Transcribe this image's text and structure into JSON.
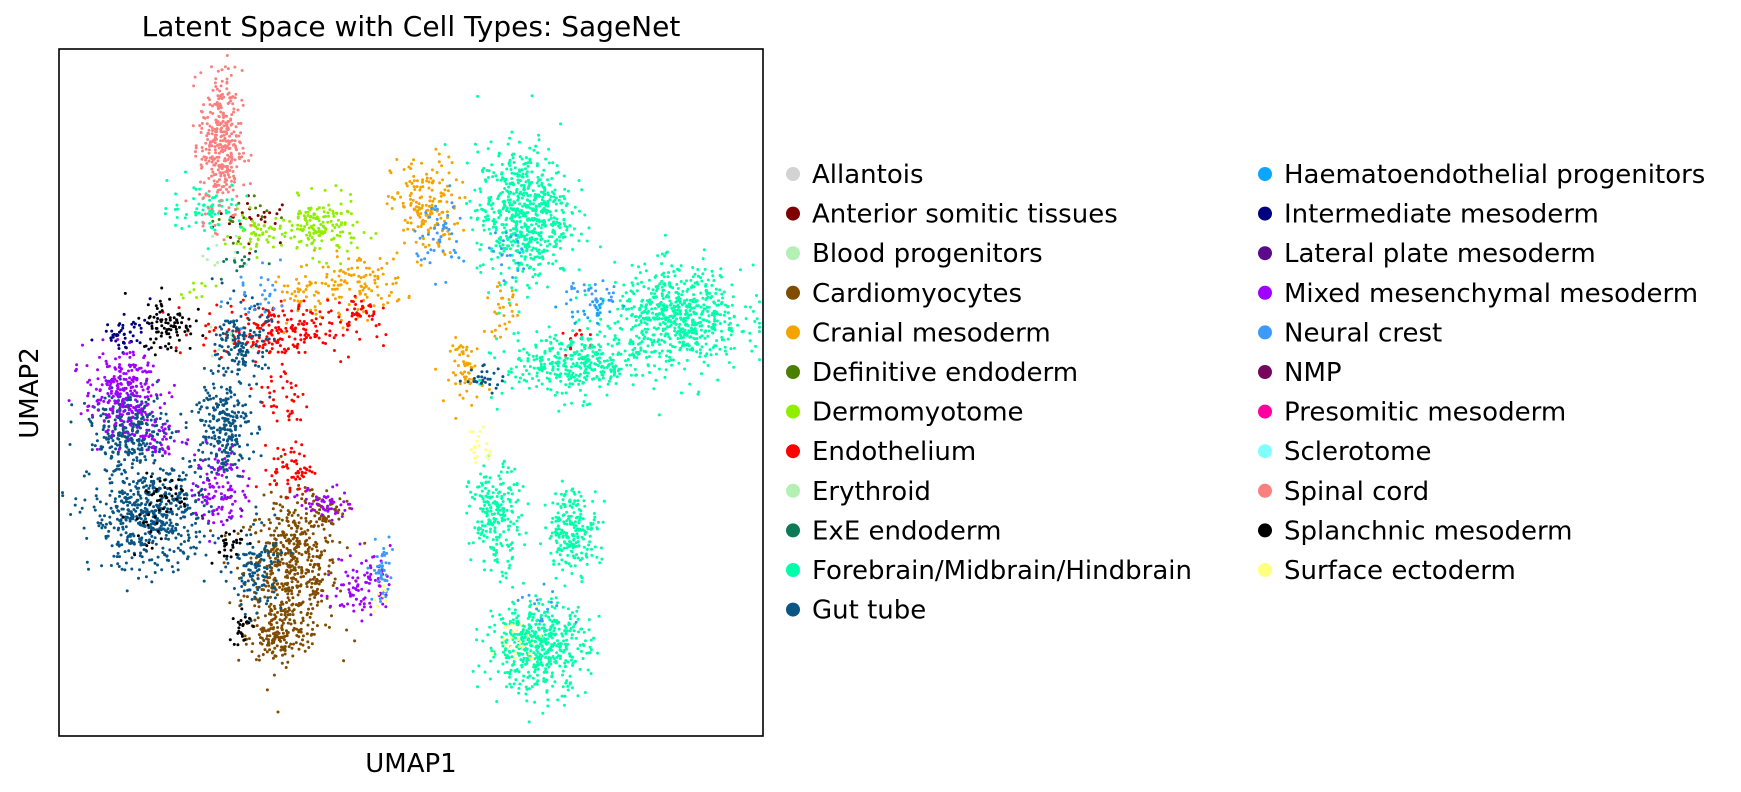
{
  "chart_data": {
    "type": "scatter",
    "title": "Latent Space with Cell Types: SageNet",
    "xlabel": "UMAP1",
    "ylabel": "UMAP2",
    "xlim": [
      0,
      10
    ],
    "ylim": [
      0,
      10
    ],
    "grid": false,
    "x_ticks": false,
    "y_ticks": false,
    "legend_position": "right",
    "legend_columns": 2,
    "series": [
      {
        "name": "Allantois",
        "color": "#d3d3d3",
        "regions": []
      },
      {
        "name": "Anterior somitic tissues",
        "color": "#800000",
        "regions": [
          [
            2.8,
            7.5,
            0.5,
            0.3,
            30
          ]
        ]
      },
      {
        "name": "Blood progenitors",
        "color": "#b4f0b4",
        "regions": [
          [
            2.4,
            7.0,
            0.3,
            0.3,
            10
          ]
        ]
      },
      {
        "name": "Cardiomyocytes",
        "color": "#7f4c00",
        "regions": [
          [
            3.3,
            2.4,
            0.55,
            0.85,
            520
          ],
          [
            3.1,
            1.4,
            0.35,
            0.3,
            120
          ],
          [
            3.7,
            3.3,
            0.3,
            0.25,
            60
          ]
        ]
      },
      {
        "name": "Cranial mesoderm",
        "color": "#f5a300",
        "regions": [
          [
            5.2,
            7.7,
            0.4,
            0.6,
            170
          ],
          [
            4.2,
            6.6,
            0.6,
            0.35,
            120
          ],
          [
            5.8,
            5.3,
            0.2,
            0.4,
            60
          ],
          [
            6.3,
            6.2,
            0.2,
            0.3,
            30
          ],
          [
            3.5,
            6.4,
            0.4,
            0.3,
            40
          ]
        ]
      },
      {
        "name": "Definitive endoderm",
        "color": "#4c7f00",
        "regions": [
          [
            2.5,
            7.6,
            0.4,
            0.3,
            15
          ]
        ]
      },
      {
        "name": "Dermomyotome",
        "color": "#90ee00",
        "regions": [
          [
            3.7,
            7.4,
            0.45,
            0.35,
            160
          ],
          [
            2.8,
            7.3,
            0.3,
            0.25,
            50
          ],
          [
            1.9,
            6.5,
            0.25,
            0.1,
            10
          ]
        ]
      },
      {
        "name": "Endothelium",
        "color": "#ff0000",
        "regions": [
          [
            3.1,
            5.9,
            0.9,
            0.35,
            220
          ],
          [
            3.3,
            3.9,
            0.25,
            0.3,
            60
          ],
          [
            3.2,
            4.9,
            0.3,
            0.5,
            40
          ],
          [
            4.3,
            6.2,
            0.3,
            0.2,
            30
          ],
          [
            7.4,
            5.8,
            0.2,
            0.2,
            15
          ]
        ]
      },
      {
        "name": "Erythroid",
        "color": "#b4f0b4",
        "regions": [
          [
            2.5,
            5.6,
            0.3,
            0.3,
            10
          ]
        ]
      },
      {
        "name": "ExE endoderm",
        "color": "#0c7a55",
        "regions": [
          [
            2.6,
            6.9,
            0.3,
            0.2,
            15
          ]
        ]
      },
      {
        "name": "Forebrain/Midbrain/Hindbrain",
        "color": "#00ffaa",
        "regions": [
          [
            6.6,
            7.6,
            0.55,
            0.8,
            650
          ],
          [
            8.8,
            6.1,
            0.75,
            0.6,
            650
          ],
          [
            7.3,
            5.4,
            0.8,
            0.4,
            350
          ],
          [
            6.2,
            3.2,
            0.3,
            0.6,
            220
          ],
          [
            7.3,
            3.0,
            0.3,
            0.5,
            220
          ],
          [
            6.8,
            1.3,
            0.6,
            0.55,
            500
          ],
          [
            2.1,
            7.7,
            0.45,
            0.3,
            80
          ]
        ]
      },
      {
        "name": "Gut tube",
        "color": "#0a5583",
        "regions": [
          [
            1.3,
            3.2,
            0.7,
            0.65,
            550
          ],
          [
            1.0,
            4.5,
            0.45,
            0.45,
            300
          ],
          [
            2.3,
            4.5,
            0.35,
            0.6,
            250
          ],
          [
            2.6,
            5.7,
            0.3,
            0.5,
            150
          ],
          [
            2.8,
            2.4,
            0.3,
            0.5,
            120
          ],
          [
            6.0,
            5.2,
            0.3,
            0.15,
            30
          ]
        ]
      },
      {
        "name": "Haematoendothelial progenitors",
        "color": "#0ba6ff",
        "regions": [
          [
            7.6,
            6.2,
            0.3,
            0.2,
            25
          ]
        ]
      },
      {
        "name": "Intermediate mesoderm",
        "color": "#000080",
        "regions": [
          [
            0.95,
            5.85,
            0.3,
            0.2,
            50
          ]
        ]
      },
      {
        "name": "Lateral plate mesoderm",
        "color": "#5a0a8a",
        "regions": [
          [
            2.2,
            3.4,
            0.3,
            0.3,
            10
          ]
        ]
      },
      {
        "name": "Mixed mesenchymal mesoderm",
        "color": "#a000ff",
        "regions": [
          [
            0.9,
            5.0,
            0.45,
            0.5,
            260
          ],
          [
            2.3,
            3.6,
            0.3,
            0.5,
            100
          ],
          [
            4.3,
            2.2,
            0.35,
            0.4,
            90
          ],
          [
            3.8,
            3.4,
            0.3,
            0.2,
            50
          ],
          [
            1.5,
            4.3,
            0.3,
            0.2,
            40
          ]
        ]
      },
      {
        "name": "Neural crest",
        "color": "#3c9bfa",
        "regions": [
          [
            4.6,
            2.4,
            0.12,
            0.4,
            50
          ],
          [
            5.4,
            7.3,
            0.3,
            0.5,
            50
          ],
          [
            7.6,
            6.4,
            0.3,
            0.2,
            30
          ],
          [
            6.4,
            7.0,
            0.3,
            0.3,
            20
          ],
          [
            6.8,
            1.9,
            0.3,
            0.3,
            15
          ],
          [
            2.8,
            6.4,
            0.4,
            0.4,
            30
          ]
        ]
      },
      {
        "name": "NMP",
        "color": "#75075c",
        "regions": []
      },
      {
        "name": "Presomitic mesoderm",
        "color": "#ff00a0",
        "regions": []
      },
      {
        "name": "Sclerotome",
        "color": "#80ffff",
        "regions": []
      },
      {
        "name": "Spinal cord",
        "color": "#fa8080",
        "regions": [
          [
            2.3,
            8.6,
            0.25,
            0.9,
            350
          ]
        ]
      },
      {
        "name": "Splanchnic mesoderm",
        "color": "#000000",
        "regions": [
          [
            1.55,
            6.0,
            0.3,
            0.35,
            90
          ],
          [
            1.5,
            3.5,
            0.3,
            0.25,
            40
          ],
          [
            2.4,
            2.8,
            0.25,
            0.2,
            30
          ],
          [
            2.6,
            1.6,
            0.1,
            0.25,
            25
          ],
          [
            1.2,
            3.0,
            0.2,
            0.2,
            15
          ]
        ]
      },
      {
        "name": "Surface ectoderm",
        "color": "#ffff80",
        "regions": [
          [
            6.0,
            4.2,
            0.15,
            0.3,
            20
          ],
          [
            6.5,
            1.4,
            0.3,
            0.3,
            25
          ],
          [
            4.6,
            2.0,
            0.1,
            0.2,
            10
          ]
        ]
      }
    ]
  }
}
